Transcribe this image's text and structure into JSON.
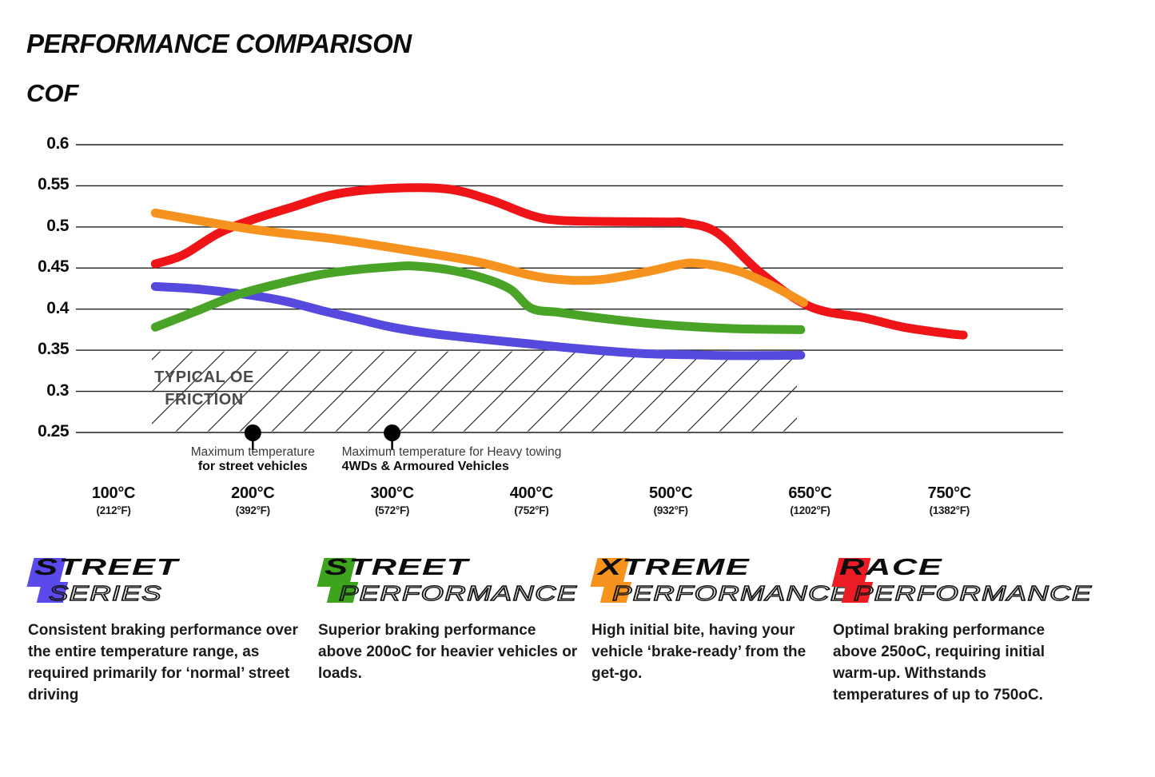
{
  "title": "PERFORMANCE COMPARISON",
  "chart_data": {
    "type": "line",
    "title": "PERFORMANCE COMPARISON",
    "ylabel": "COF",
    "xlabel": "",
    "ylim": [
      0.25,
      0.6
    ],
    "grid": "horizontal",
    "y_ticks": [
      "0.6",
      "0.55",
      "0.5",
      "0.45",
      "0.4",
      "0.35",
      "0.3",
      "0.25"
    ],
    "x_ticks": [
      {
        "c": "100°C",
        "f": "(212°F)"
      },
      {
        "c": "200°C",
        "f": "(392°F)"
      },
      {
        "c": "300°C",
        "f": "(572°F)"
      },
      {
        "c": "400°C",
        "f": "(752°F)"
      },
      {
        "c": "500°C",
        "f": "(932°F)"
      },
      {
        "c": "650°C",
        "f": "(1202°F)"
      },
      {
        "c": "750°C",
        "f": "(1382°F)"
      }
    ],
    "series": [
      {
        "name": "Street Series",
        "color": "#5649DE",
        "points": [
          [
            130,
            0.4275
          ],
          [
            160,
            0.4245
          ],
          [
            200,
            0.4165
          ],
          [
            225,
            0.409
          ],
          [
            250,
            0.398
          ],
          [
            275,
            0.388
          ],
          [
            300,
            0.378
          ],
          [
            330,
            0.37
          ],
          [
            365,
            0.3635
          ],
          [
            400,
            0.3575
          ],
          [
            440,
            0.351
          ],
          [
            480,
            0.346
          ],
          [
            520,
            0.3445
          ],
          [
            560,
            0.3435
          ],
          [
            600,
            0.3435
          ],
          [
            640,
            0.344
          ]
        ]
      },
      {
        "name": "Street Performance",
        "color": "#49A327",
        "points": [
          [
            130,
            0.378
          ],
          [
            160,
            0.398
          ],
          [
            190,
            0.418
          ],
          [
            220,
            0.4315
          ],
          [
            250,
            0.4425
          ],
          [
            275,
            0.448
          ],
          [
            300,
            0.4515
          ],
          [
            315,
            0.4525
          ],
          [
            340,
            0.448
          ],
          [
            365,
            0.438
          ],
          [
            385,
            0.424
          ],
          [
            400,
            0.401
          ],
          [
            420,
            0.396
          ],
          [
            450,
            0.389
          ],
          [
            485,
            0.3825
          ],
          [
            525,
            0.3785
          ],
          [
            575,
            0.376
          ],
          [
            640,
            0.375
          ]
        ]
      },
      {
        "name": "Race Performance",
        "color": "#EE1418",
        "points": [
          [
            130,
            0.455
          ],
          [
            150,
            0.466
          ],
          [
            175,
            0.492
          ],
          [
            200,
            0.509
          ],
          [
            230,
            0.525
          ],
          [
            260,
            0.54
          ],
          [
            300,
            0.547
          ],
          [
            340,
            0.546
          ],
          [
            370,
            0.533
          ],
          [
            400,
            0.514
          ],
          [
            420,
            0.508
          ],
          [
            460,
            0.5065
          ],
          [
            500,
            0.506
          ],
          [
            515,
            0.505
          ],
          [
            550,
            0.493
          ],
          [
            597,
            0.444
          ],
          [
            650,
            0.403
          ],
          [
            690,
            0.389
          ],
          [
            717,
            0.378
          ],
          [
            750,
            0.37
          ],
          [
            760,
            0.3685
          ]
        ]
      },
      {
        "name": "Xtreme Performance",
        "color": "#F6921E",
        "points": [
          [
            130,
            0.517
          ],
          [
            200,
            0.497
          ],
          [
            260,
            0.485
          ],
          [
            310,
            0.472
          ],
          [
            360,
            0.458
          ],
          [
            400,
            0.441
          ],
          [
            425,
            0.4355
          ],
          [
            450,
            0.436
          ],
          [
            480,
            0.4445
          ],
          [
            510,
            0.4545
          ],
          [
            525,
            0.456
          ],
          [
            550,
            0.4525
          ],
          [
            575,
            0.4455
          ],
          [
            600,
            0.4335
          ],
          [
            622,
            0.421
          ],
          [
            643,
            0.408
          ]
        ]
      }
    ],
    "oe_zone": {
      "label_line1": "TYPICAL OE",
      "label_line2": "FRICTION",
      "y_top": 0.35,
      "y_bottom": 0.25
    },
    "annotations": [
      {
        "temp": 200,
        "line1": "Maximum temperature",
        "line2": "for street vehicles",
        "align": "center"
      },
      {
        "temp": 300,
        "line1": "Maximum temperature for Heavy towing",
        "line2": "4WDs & Armoured Vehicles",
        "align": "left"
      }
    ]
  },
  "legend": [
    {
      "word1": "STREET",
      "word2": "SERIES",
      "color": "#5A4AEC",
      "description": "Consistent braking performance over the entire temperature range, as required primarily for ‘normal’ street driving"
    },
    {
      "word1": "STREET",
      "word2": "PERFORMANCE",
      "color": "#3EA41E",
      "description": "Superior braking performance above 200oC for heavier vehicles or loads."
    },
    {
      "word1": "XTREME",
      "word2": "PERFORMANCE",
      "color": "#F6921E",
      "description": "High initial bite, having your vehicle ‘brake-ready’ from the get-go."
    },
    {
      "word1": "RACE",
      "word2": "PERFORMANCE",
      "color": "#EC1C24",
      "description": "Optimal braking performance above 250oC, requiring initial warm-up. Withstands temperatures of up to 750oC."
    }
  ]
}
